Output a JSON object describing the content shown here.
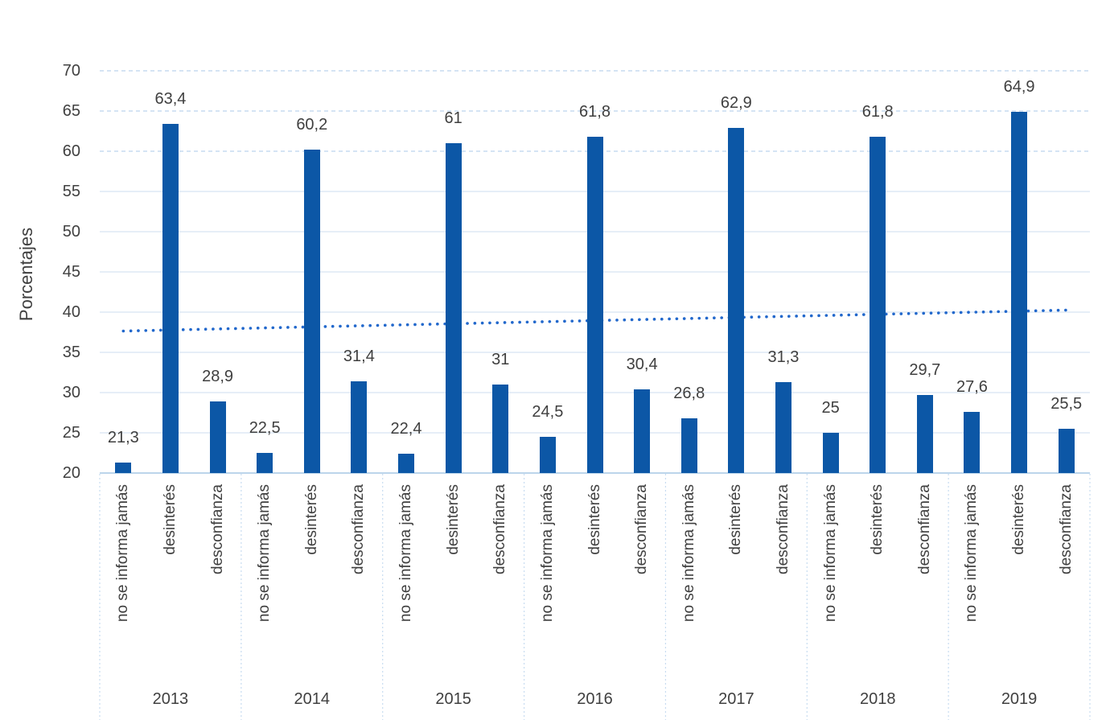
{
  "chart_data": {
    "type": "bar",
    "title": "",
    "ylabel": "Porcentajes",
    "xlabel": "",
    "ylim": [
      20,
      70
    ],
    "ytick_step": 5,
    "yticks": [
      20,
      25,
      30,
      35,
      40,
      45,
      50,
      55,
      60,
      65,
      70
    ],
    "grid": "horizontal",
    "legend": "none",
    "categories_per_year": [
      "no se informa jamás",
      "desinterés",
      "desconfianza"
    ],
    "years": [
      "2013",
      "2014",
      "2015",
      "2016",
      "2017",
      "2018",
      "2019"
    ],
    "series": [
      {
        "year": "2013",
        "values": [
          21.3,
          63.4,
          28.9
        ],
        "labels": [
          "21,3",
          "63,4",
          "28,9"
        ]
      },
      {
        "year": "2014",
        "values": [
          22.5,
          60.2,
          31.4
        ],
        "labels": [
          "22,5",
          "60,2",
          "31,4"
        ]
      },
      {
        "year": "2015",
        "values": [
          22.4,
          61.0,
          31.0
        ],
        "labels": [
          "22,4",
          "61",
          "31"
        ]
      },
      {
        "year": "2016",
        "values": [
          24.5,
          61.8,
          30.4
        ],
        "labels": [
          "24,5",
          "61,8",
          "30,4"
        ]
      },
      {
        "year": "2017",
        "values": [
          26.8,
          62.9,
          31.3
        ],
        "labels": [
          "26,8",
          "62,9",
          "31,3"
        ]
      },
      {
        "year": "2018",
        "values": [
          25.0,
          61.8,
          29.7
        ],
        "labels": [
          "25",
          "61,8",
          "29,7"
        ]
      },
      {
        "year": "2019",
        "values": [
          27.6,
          64.9,
          25.5
        ],
        "labels": [
          "27,6",
          "64,9",
          "25,5"
        ]
      }
    ],
    "trendline": {
      "style": "dotted",
      "start_value": 37.65,
      "end_value": 40.25
    },
    "colors": {
      "bar": "#0C57A6",
      "trend": "#2268CC",
      "grid_solid": "#E3ECF6",
      "grid_dashed": "#C7DCF1",
      "axis_line": "#BCD5EB",
      "separator": "#C7DCF1",
      "text": "#404040"
    }
  }
}
